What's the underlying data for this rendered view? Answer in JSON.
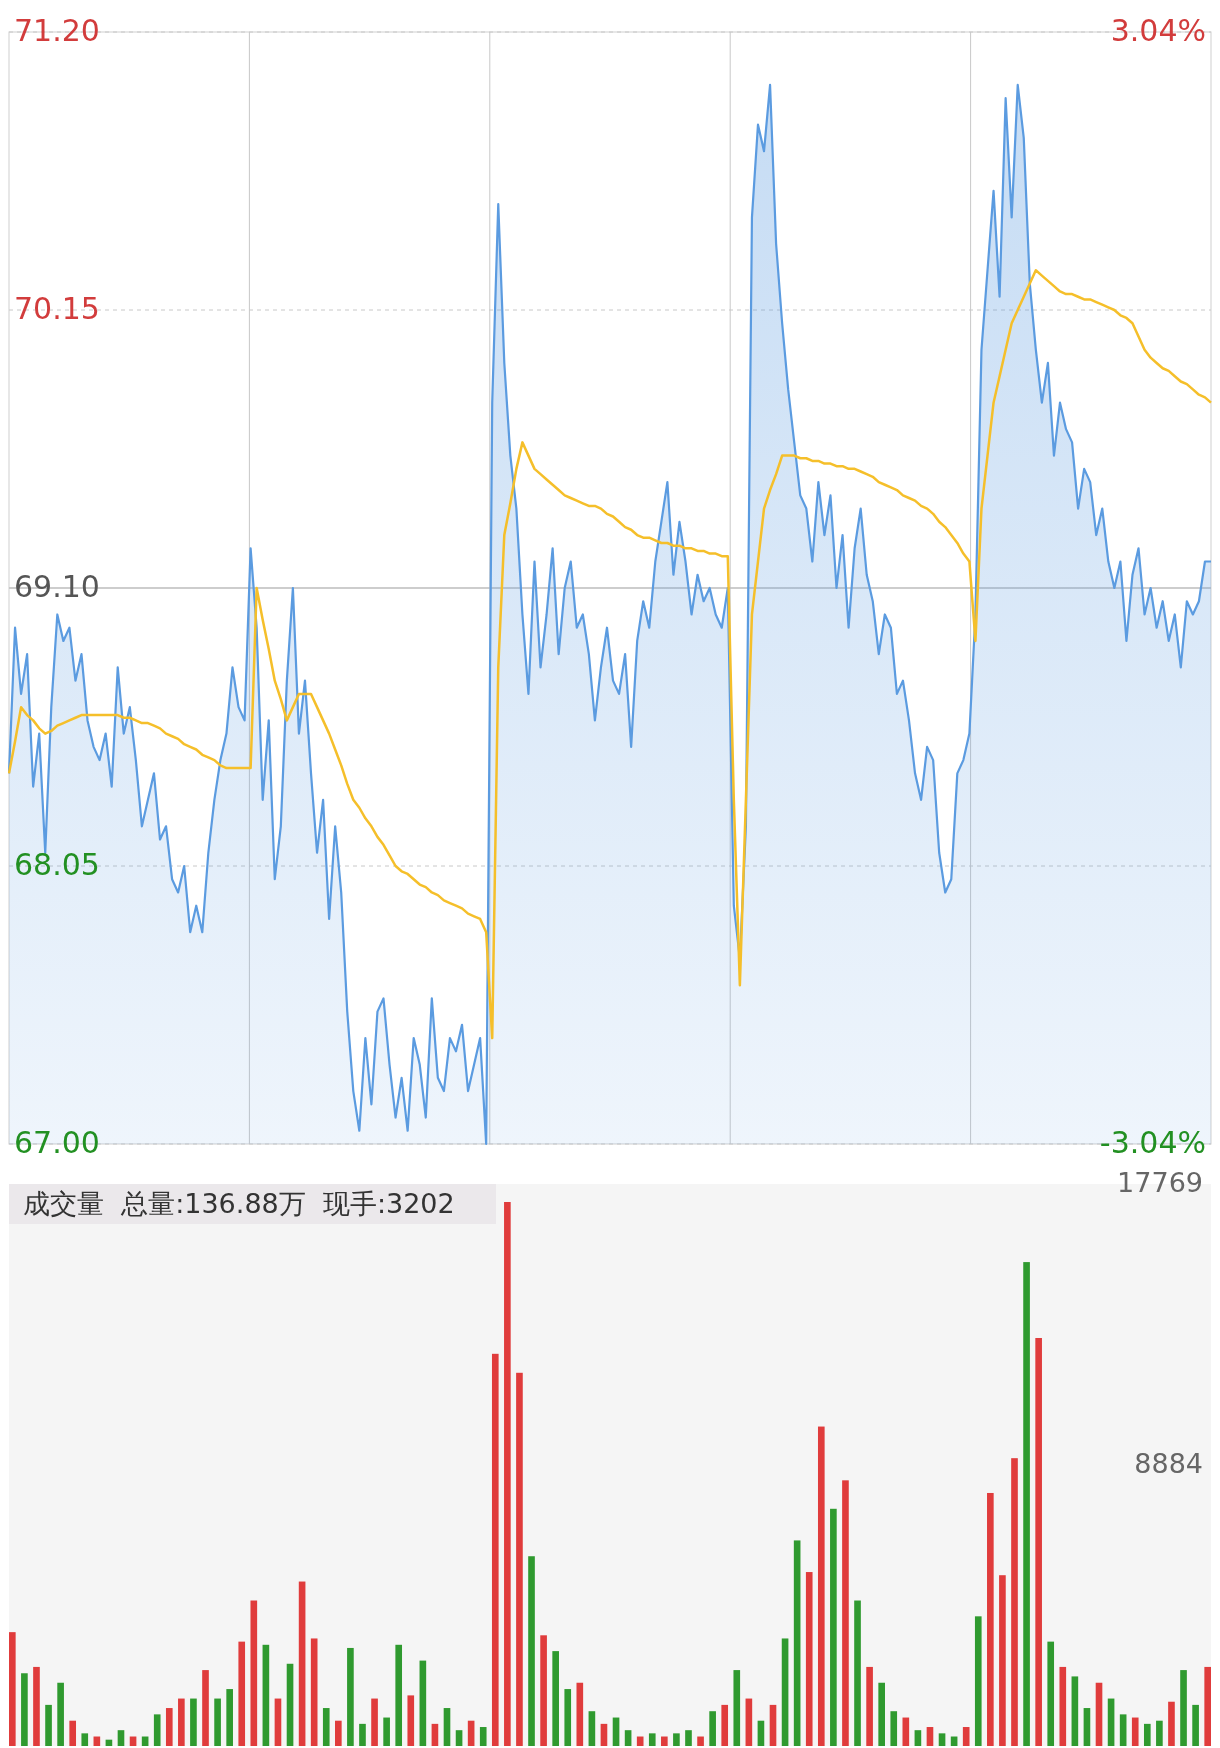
{
  "chart_data": [
    {
      "type": "area",
      "categories": [
        null,
        null,
        null,
        null,
        null,
        null,
        null,
        null,
        null,
        null,
        null,
        null,
        null,
        null,
        null,
        null,
        null,
        null,
        null,
        null,
        null,
        null,
        null,
        null,
        null,
        null,
        null,
        null,
        null,
        null,
        null,
        null,
        null,
        null,
        null,
        null,
        null,
        null,
        null,
        null,
        null,
        null,
        null,
        null,
        null,
        null,
        null,
        null,
        null,
        null,
        null,
        null,
        null,
        null,
        null,
        null,
        null,
        null,
        null,
        null,
        null,
        null,
        null,
        null,
        null,
        null,
        null,
        null,
        null,
        null,
        null,
        null,
        null,
        null,
        null,
        null,
        null,
        null,
        null,
        null,
        null,
        null,
        null,
        null,
        null,
        null,
        null,
        null,
        null,
        null,
        null,
        null,
        null,
        null,
        null,
        null,
        null,
        null,
        null,
        null,
        null,
        null,
        null,
        null,
        null,
        null,
        null,
        null,
        null,
        null,
        null,
        null,
        null,
        null,
        null,
        null,
        null,
        null,
        null,
        null,
        null,
        null,
        null,
        null,
        null,
        null,
        null,
        null,
        null,
        null,
        null,
        null,
        null,
        null,
        null,
        null,
        null,
        null,
        null,
        null,
        null,
        null,
        null,
        null,
        null,
        null,
        null,
        null,
        null,
        null,
        null,
        null,
        null,
        null,
        null,
        null,
        null,
        null,
        null,
        null,
        null,
        null,
        null,
        null,
        null,
        null,
        null,
        null,
        null,
        null,
        null,
        null,
        null,
        null,
        null,
        null,
        null,
        null,
        null,
        null,
        null,
        null,
        null,
        null,
        null,
        null,
        null,
        null,
        null,
        null,
        null,
        null,
        null,
        null,
        null,
        null,
        null,
        null,
        null,
        null
      ],
      "ylim": [
        67.0,
        71.2
      ],
      "yticks": [
        {
          "value": 67.0,
          "label": "67.00"
        },
        {
          "value": 68.05,
          "label": "68.05"
        },
        {
          "value": 69.1,
          "label": "69.10"
        },
        {
          "value": 70.15,
          "label": "70.15"
        },
        {
          "value": 71.2,
          "label": "71.20"
        }
      ],
      "y2lim": [
        -3.04,
        3.04
      ],
      "y2ticks": [
        {
          "value": -3.04,
          "label": "-3.04%"
        },
        {
          "value": 3.04,
          "label": "3.04%"
        }
      ],
      "grid": true,
      "series": [
        {
          "type": "area",
          "color": "#5b9be0",
          "values": [
            68.4,
            68.95,
            68.7,
            68.85,
            68.35,
            68.55,
            68.1,
            68.65,
            69.0,
            68.9,
            68.95,
            68.75,
            68.85,
            68.6,
            68.5,
            68.45,
            68.55,
            68.35,
            68.8,
            68.55,
            68.65,
            68.45,
            68.2,
            68.3,
            68.4,
            68.15,
            68.2,
            68.0,
            67.95,
            68.05,
            67.8,
            67.9,
            67.8,
            68.1,
            68.3,
            68.45,
            68.55,
            68.8,
            68.65,
            68.6,
            69.25,
            68.95,
            68.3,
            68.6,
            68.0,
            68.2,
            68.75,
            69.1,
            68.55,
            68.75,
            68.4,
            68.1,
            68.3,
            67.85,
            68.2,
            67.95,
            67.5,
            67.2,
            67.05,
            67.4,
            67.15,
            67.5,
            67.55,
            67.3,
            67.1,
            67.25,
            67.05,
            67.4,
            67.3,
            67.1,
            67.55,
            67.25,
            67.2,
            67.4,
            67.35,
            67.45,
            67.2,
            67.3,
            67.4,
            67.0,
            69.8,
            70.55,
            69.95,
            69.6,
            69.4,
            69.0,
            68.7,
            69.2,
            68.8,
            69.0,
            69.25,
            68.85,
            69.1,
            69.2,
            68.95,
            69.0,
            68.85,
            68.6,
            68.8,
            68.95,
            68.75,
            68.7,
            68.85,
            68.5,
            68.9,
            69.05,
            68.95,
            69.2,
            69.35,
            69.5,
            69.15,
            69.35,
            69.2,
            69.0,
            69.15,
            69.05,
            69.1,
            69.0,
            68.95,
            69.1,
            67.9,
            67.7,
            68.2,
            70.5,
            70.85,
            70.75,
            71.0,
            70.4,
            70.1,
            69.85,
            69.65,
            69.45,
            69.4,
            69.2,
            69.5,
            69.3,
            69.45,
            69.1,
            69.3,
            68.95,
            69.25,
            69.4,
            69.15,
            69.05,
            68.85,
            69.0,
            68.95,
            68.7,
            68.75,
            68.6,
            68.4,
            68.3,
            68.5,
            68.45,
            68.1,
            67.95,
            68.0,
            68.4,
            68.45,
            68.55,
            69.0,
            70.0,
            70.3,
            70.6,
            70.2,
            70.95,
            70.5,
            71.0,
            70.8,
            70.25,
            70.0,
            69.8,
            69.95,
            69.6,
            69.8,
            69.7,
            69.65,
            69.4,
            69.55,
            69.5,
            69.3,
            69.4,
            69.2,
            69.1,
            69.2,
            68.9,
            69.15,
            69.25,
            69.0,
            69.1,
            68.95,
            69.05,
            68.9,
            69.0,
            68.8,
            69.05,
            69.0,
            69.05,
            69.2,
            69.2
          ]
        },
        {
          "type": "line",
          "color": "#f5bf2a",
          "values": [
            68.4,
            68.52,
            68.65,
            68.62,
            68.6,
            68.57,
            68.55,
            68.56,
            68.58,
            68.59,
            68.6,
            68.61,
            68.62,
            68.62,
            68.62,
            68.62,
            68.62,
            68.62,
            68.62,
            68.61,
            68.61,
            68.6,
            68.59,
            68.59,
            68.58,
            68.57,
            68.55,
            68.54,
            68.53,
            68.51,
            68.5,
            68.49,
            68.47,
            68.46,
            68.45,
            68.43,
            68.42,
            68.42,
            68.42,
            68.42,
            68.42,
            69.1,
            68.98,
            68.87,
            68.75,
            68.68,
            68.6,
            68.65,
            68.7,
            68.7,
            68.7,
            68.65,
            68.6,
            68.55,
            68.49,
            68.43,
            68.36,
            68.3,
            68.27,
            68.23,
            68.2,
            68.16,
            68.13,
            68.09,
            68.05,
            68.03,
            68.02,
            68.0,
            67.98,
            67.97,
            67.95,
            67.94,
            67.92,
            67.91,
            67.9,
            67.89,
            67.87,
            67.86,
            67.85,
            67.8,
            67.4,
            68.8,
            69.3,
            69.42,
            69.55,
            69.65,
            69.6,
            69.55,
            69.53,
            69.51,
            69.49,
            69.47,
            69.45,
            69.44,
            69.43,
            69.42,
            69.41,
            69.41,
            69.4,
            69.38,
            69.37,
            69.35,
            69.33,
            69.32,
            69.3,
            69.29,
            69.29,
            69.28,
            69.27,
            69.27,
            69.26,
            69.26,
            69.25,
            69.25,
            69.24,
            69.24,
            69.23,
            69.23,
            69.22,
            69.22,
            68.3,
            67.6,
            68.3,
            69.0,
            69.2,
            69.4,
            69.47,
            69.53,
            69.6,
            69.6,
            69.6,
            69.59,
            69.59,
            69.58,
            69.58,
            69.57,
            69.57,
            69.56,
            69.56,
            69.55,
            69.55,
            69.54,
            69.53,
            69.52,
            69.5,
            69.49,
            69.48,
            69.47,
            69.45,
            69.44,
            69.43,
            69.41,
            69.4,
            69.38,
            69.35,
            69.33,
            69.3,
            69.27,
            69.23,
            69.2,
            68.9,
            69.4,
            69.6,
            69.8,
            69.9,
            70.0,
            70.1,
            70.15,
            70.2,
            70.25,
            70.3,
            70.28,
            70.26,
            70.24,
            70.22,
            70.21,
            70.21,
            70.2,
            70.19,
            70.19,
            70.18,
            70.17,
            70.16,
            70.15,
            70.13,
            70.12,
            70.1,
            70.05,
            70.0,
            69.97,
            69.95,
            69.93,
            69.92,
            69.9,
            69.88,
            69.87,
            69.85,
            69.83,
            69.82,
            69.8
          ]
        }
      ]
    },
    {
      "type": "bar",
      "title": "成交量  总量:136.88万  现手:3202",
      "ylim": [
        0,
        17769
      ],
      "yticks": [
        8884,
        17769
      ],
      "categories": [
        null,
        null,
        null,
        null,
        null,
        null,
        null,
        null,
        null,
        null,
        null,
        null,
        null,
        null,
        null,
        null,
        null,
        null,
        null,
        null,
        null,
        null,
        null,
        null,
        null,
        null,
        null,
        null,
        null,
        null,
        null,
        null,
        null,
        null,
        null,
        null,
        null,
        null,
        null,
        null,
        null,
        null,
        null,
        null,
        null,
        null,
        null,
        null,
        null,
        null,
        null,
        null,
        null,
        null,
        null,
        null,
        null,
        null,
        null,
        null,
        null,
        null,
        null,
        null,
        null,
        null,
        null,
        null,
        null,
        null,
        null,
        null,
        null,
        null,
        null,
        null,
        null,
        null,
        null,
        null,
        null,
        null,
        null,
        null,
        null,
        null,
        null,
        null,
        null,
        null,
        null,
        null,
        null,
        null,
        null,
        null,
        null,
        null,
        null,
        null
      ],
      "values": [
        3600,
        2300,
        2500,
        1300,
        2000,
        800,
        400,
        300,
        200,
        500,
        300,
        300,
        1000,
        1200,
        1500,
        1500,
        2400,
        1500,
        1800,
        3300,
        4600,
        3200,
        1500,
        2600,
        5200,
        3400,
        1200,
        800,
        3100,
        700,
        1500,
        900,
        3200,
        1600,
        2700,
        700,
        1200,
        500,
        800,
        600,
        12400,
        17200,
        11800,
        6000,
        3500,
        3000,
        1800,
        2000,
        1100,
        700,
        900,
        500,
        300,
        400,
        300,
        400,
        500,
        300,
        1100,
        1300,
        2400,
        1500,
        800,
        1300,
        3400,
        6500,
        5500,
        10100,
        7500,
        8400,
        4600,
        2500,
        2000,
        1100,
        900,
        500,
        600,
        400,
        300,
        600,
        4100,
        8000,
        5400,
        9100,
        15300,
        12900,
        3300,
        2500,
        2200,
        1200,
        2000,
        1500,
        1000,
        900,
        700,
        800,
        1400,
        2400,
        1300,
        2500
      ],
      "colors": [
        "#e03c3c",
        "#2f9a2f",
        "#e03c3c",
        "#2f9a2f",
        "#2f9a2f",
        "#e03c3c",
        "#2f9a2f",
        "#e03c3c",
        "#2f9a2f",
        "#2f9a2f",
        "#e03c3c",
        "#2f9a2f",
        "#2f9a2f",
        "#e03c3c",
        "#e03c3c",
        "#2f9a2f",
        "#e03c3c",
        "#2f9a2f",
        "#2f9a2f",
        "#e03c3c",
        "#e03c3c",
        "#2f9a2f",
        "#e03c3c",
        "#2f9a2f",
        "#e03c3c",
        "#e03c3c",
        "#2f9a2f",
        "#e03c3c",
        "#2f9a2f",
        "#2f9a2f",
        "#e03c3c",
        "#2f9a2f",
        "#2f9a2f",
        "#e03c3c",
        "#2f9a2f",
        "#e03c3c",
        "#2f9a2f",
        "#2f9a2f",
        "#e03c3c",
        "#2f9a2f",
        "#e03c3c",
        "#e03c3c",
        "#e03c3c",
        "#2f9a2f",
        "#e03c3c",
        "#2f9a2f",
        "#2f9a2f",
        "#e03c3c",
        "#2f9a2f",
        "#e03c3c",
        "#2f9a2f",
        "#2f9a2f",
        "#e03c3c",
        "#2f9a2f",
        "#e03c3c",
        "#2f9a2f",
        "#2f9a2f",
        "#e03c3c",
        "#2f9a2f",
        "#e03c3c",
        "#2f9a2f",
        "#e03c3c",
        "#2f9a2f",
        "#e03c3c",
        "#2f9a2f",
        "#2f9a2f",
        "#e03c3c",
        "#e03c3c",
        "#2f9a2f",
        "#e03c3c",
        "#2f9a2f",
        "#e03c3c",
        "#2f9a2f",
        "#2f9a2f",
        "#e03c3c",
        "#2f9a2f",
        "#e03c3c",
        "#2f9a2f",
        "#2f9a2f",
        "#e03c3c",
        "#2f9a2f",
        "#e03c3c",
        "#e03c3c",
        "#e03c3c",
        "#2f9a2f",
        "#e03c3c",
        "#2f9a2f",
        "#e03c3c",
        "#2f9a2f",
        "#2f9a2f",
        "#e03c3c",
        "#2f9a2f",
        "#2f9a2f",
        "#e03c3c",
        "#2f9a2f",
        "#2f9a2f",
        "#e03c3c",
        "#2f9a2f",
        "#2f9a2f",
        "#e03c3c"
      ]
    }
  ]
}
